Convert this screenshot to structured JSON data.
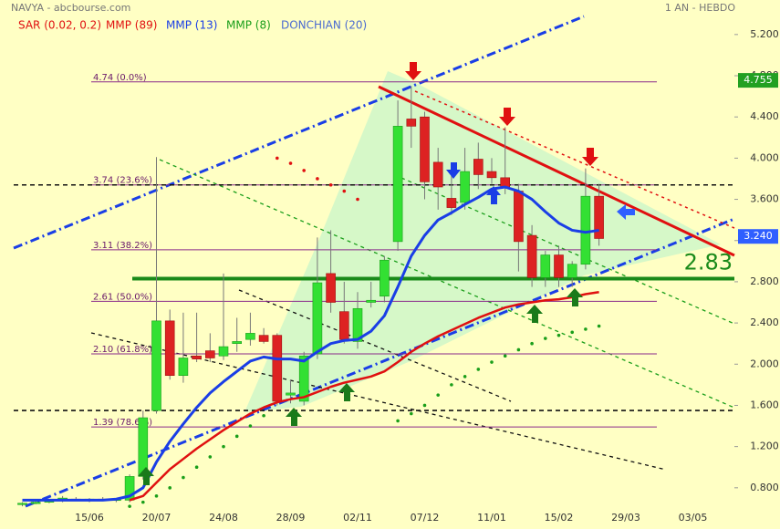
{
  "header": {
    "title": "NAVYA - abcbourse.com",
    "period": "1 AN - HEBDO"
  },
  "chart_data": {
    "type": "candlestick",
    "legend": [
      {
        "label": "SAR (0.02, 0.2)",
        "color": "#e01010"
      },
      {
        "label": "MMP (89)",
        "color": "#e01010"
      },
      {
        "label": "MMP (13)",
        "color": "#1a3ee6"
      },
      {
        "label": "MMP (8)",
        "color": "#1a9e1a"
      },
      {
        "label": "DONCHIAN (20)",
        "color": "#4a6ad0"
      }
    ],
    "categories": [
      null,
      null,
      null,
      null,
      null,
      "15/06",
      null,
      null,
      null,
      null,
      "20/07",
      null,
      null,
      null,
      null,
      "24/08",
      null,
      null,
      null,
      null,
      "28/09",
      null,
      null,
      null,
      null,
      "02/11",
      null,
      null,
      null,
      null,
      "07/12",
      null,
      null,
      null,
      null,
      "11/01",
      null,
      null,
      null,
      null,
      "15/02",
      null,
      null,
      null,
      null,
      "29/03",
      null,
      null,
      null,
      null,
      "03/05",
      null,
      null
    ],
    "open": [
      0.64,
      0.65,
      0.66,
      0.68,
      0.69,
      0.68,
      0.69,
      0.68,
      0.68,
      0.91,
      1.55,
      2.42,
      1.89,
      2.08,
      2.13,
      2.08,
      2.2,
      2.24,
      2.28,
      2.28,
      1.7,
      1.64,
      2.1,
      2.88,
      2.51,
      2.22,
      2.6,
      2.66,
      3.19,
      4.38,
      4.4,
      3.96,
      3.61,
      3.57,
      3.99,
      3.87,
      3.81,
      3.68,
      3.25,
      2.84,
      3.06,
      2.84,
      2.97,
      3.63,
      null,
      null,
      null,
      null,
      null,
      null,
      null,
      null,
      null
    ],
    "high": [
      0.66,
      0.67,
      0.69,
      0.72,
      0.71,
      0.7,
      0.71,
      0.7,
      0.93,
      1.55,
      4.01,
      2.53,
      2.5,
      2.5,
      2.3,
      2.88,
      2.45,
      2.5,
      2.35,
      2.3,
      1.85,
      2.12,
      3.23,
      3.3,
      2.8,
      2.7,
      2.8,
      3.05,
      4.56,
      4.7,
      4.45,
      4.1,
      3.85,
      4.1,
      4.15,
      4.0,
      4.3,
      3.75,
      3.35,
      3.1,
      3.15,
      3.0,
      3.9,
      3.75,
      null,
      null,
      null,
      null,
      null,
      null,
      null,
      null,
      null
    ],
    "low": [
      0.62,
      0.64,
      0.65,
      0.66,
      0.67,
      0.66,
      0.67,
      0.66,
      0.66,
      0.88,
      1.52,
      1.85,
      1.82,
      2.02,
      2.02,
      2.04,
      2.12,
      2.18,
      2.2,
      1.6,
      1.62,
      1.6,
      2.05,
      2.5,
      2.2,
      2.15,
      2.55,
      2.6,
      3.1,
      4.1,
      3.6,
      3.5,
      3.45,
      3.5,
      3.7,
      3.75,
      3.65,
      2.9,
      2.75,
      2.75,
      2.75,
      2.75,
      2.92,
      3.15,
      null,
      null,
      null,
      null,
      null,
      null,
      null,
      null,
      null
    ],
    "close": [
      0.65,
      0.66,
      0.68,
      0.7,
      0.68,
      0.69,
      0.68,
      0.69,
      0.91,
      1.48,
      2.42,
      1.89,
      2.06,
      2.05,
      2.06,
      2.17,
      2.22,
      2.3,
      2.22,
      1.64,
      1.72,
      2.08,
      2.79,
      2.6,
      2.24,
      2.54,
      2.62,
      3.01,
      4.31,
      4.31,
      3.77,
      3.72,
      3.52,
      3.87,
      3.84,
      3.81,
      3.72,
      3.19,
      2.84,
      3.06,
      2.84,
      2.97,
      3.63,
      3.22,
      null,
      null,
      null,
      null,
      null,
      null,
      null,
      null,
      null
    ],
    "up_color": "#33e033",
    "down_color": "#dd2222",
    "indicators": {
      "sar": {
        "color": "#e01010",
        "below_color": "#1a9e1a",
        "values": [
          null,
          null,
          null,
          null,
          null,
          null,
          null,
          null,
          0.62,
          0.66,
          0.72,
          0.8,
          0.9,
          1.0,
          1.1,
          1.2,
          1.3,
          1.4,
          1.5,
          4.0,
          3.95,
          3.88,
          3.8,
          3.74,
          3.68,
          3.6,
          null,
          null,
          1.45,
          1.52,
          1.6,
          1.7,
          1.8,
          1.88,
          1.95,
          2.02,
          2.08,
          2.14,
          2.2,
          2.25,
          2.28,
          2.31,
          2.34,
          2.37,
          null,
          null,
          null,
          null,
          null,
          null,
          null,
          null,
          null
        ]
      },
      "mmp89": {
        "color": "#e01010",
        "values": [
          null,
          null,
          null,
          null,
          null,
          null,
          null,
          null,
          0.68,
          0.72,
          0.85,
          0.98,
          1.08,
          1.18,
          1.27,
          1.36,
          1.44,
          1.52,
          1.58,
          1.63,
          1.66,
          1.68,
          1.73,
          1.78,
          1.82,
          1.85,
          1.88,
          1.93,
          2.02,
          2.12,
          2.2,
          2.27,
          2.33,
          2.39,
          2.45,
          2.5,
          2.55,
          2.58,
          2.6,
          2.62,
          2.63,
          2.65,
          2.68,
          2.7,
          null,
          null,
          null,
          null,
          null,
          null,
          null,
          null,
          null
        ]
      },
      "mmp13": {
        "color": "#1a3ee6",
        "values": [
          0.68,
          0.68,
          0.68,
          0.68,
          0.68,
          0.68,
          0.68,
          0.69,
          0.72,
          0.8,
          1.05,
          1.25,
          1.42,
          1.58,
          1.72,
          1.83,
          1.93,
          2.03,
          2.07,
          2.05,
          2.05,
          2.03,
          2.12,
          2.2,
          2.23,
          2.24,
          2.32,
          2.47,
          2.75,
          3.05,
          3.25,
          3.4,
          3.47,
          3.55,
          3.62,
          3.7,
          3.72,
          3.68,
          3.6,
          3.48,
          3.37,
          3.3,
          3.28,
          3.3,
          null,
          null,
          null,
          null,
          null,
          null,
          null,
          null,
          null
        ]
      }
    },
    "fib_levels": [
      {
        "value": 4.74,
        "label": "4.74  (0.0%)"
      },
      {
        "value": 3.74,
        "label": "3.74  (23.6%)"
      },
      {
        "value": 3.11,
        "label": "3.11  (38.2%)"
      },
      {
        "value": 2.61,
        "label": "2.61  (50.0%)"
      },
      {
        "value": 2.1,
        "label": "2.10  (61.8%)"
      },
      {
        "value": 1.39,
        "label": "1.39  (78.6%)"
      }
    ],
    "dashed_levels": [
      3.74,
      1.55
    ],
    "support": {
      "value": 2.83,
      "label": "2.83",
      "color": "#1a8a1a"
    },
    "price_tags": [
      {
        "value": 4.755,
        "label": "4.755",
        "color": "#22a022"
      },
      {
        "value": 3.24,
        "label": "3.240",
        "color": "#2f5fff"
      }
    ],
    "ylim": [
      0.4,
      5.535
    ],
    "yticks": [
      {
        "value": 0.8,
        "label": "0.800"
      },
      {
        "value": 1.2,
        "label": "1.200"
      },
      {
        "value": 1.6,
        "label": "1.600"
      },
      {
        "value": 2.0,
        "label": "2.000"
      },
      {
        "value": 2.4,
        "label": "2.400"
      },
      {
        "value": 2.8,
        "label": "2.800"
      },
      {
        "value": 3.2,
        "label": "3.200"
      },
      {
        "value": 3.6,
        "label": "3.600"
      },
      {
        "value": 4.0,
        "label": "4.000"
      },
      {
        "value": 4.4,
        "label": "4.400"
      },
      {
        "value": 4.8,
        "label": "4.800"
      },
      {
        "value": 5.2,
        "label": "5.200"
      }
    ]
  }
}
